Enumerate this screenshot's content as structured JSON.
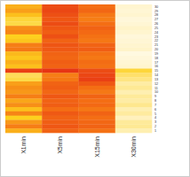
{
  "chart_data": {
    "type": "heatmap",
    "columns": [
      "X1min",
      "X5min",
      "X15min",
      "X30min"
    ],
    "rows": [
      "30",
      "29",
      "28",
      "27",
      "26",
      "25",
      "24",
      "23",
      "22",
      "21",
      "20",
      "19",
      "18",
      "17",
      "16",
      "15",
      "14",
      "13",
      "12",
      "11",
      "10",
      "9",
      "8",
      "7",
      "6",
      "5",
      "4",
      "3",
      "2",
      "1"
    ],
    "zlim": [
      0,
      1
    ],
    "cells": [
      [
        0.55,
        0.2,
        0.35,
        0.95
      ],
      [
        0.5,
        0.18,
        0.32,
        0.96
      ],
      [
        0.6,
        0.22,
        0.38,
        0.95
      ],
      [
        0.7,
        0.25,
        0.4,
        0.97
      ],
      [
        0.72,
        0.2,
        0.35,
        0.96
      ],
      [
        0.45,
        0.25,
        0.3,
        0.94
      ],
      [
        0.42,
        0.28,
        0.33,
        0.95
      ],
      [
        0.65,
        0.22,
        0.36,
        0.97
      ],
      [
        0.62,
        0.3,
        0.38,
        0.96
      ],
      [
        0.4,
        0.24,
        0.3,
        0.95
      ],
      [
        0.38,
        0.26,
        0.28,
        0.94
      ],
      [
        0.58,
        0.3,
        0.36,
        0.98
      ],
      [
        0.62,
        0.32,
        0.38,
        0.97
      ],
      [
        0.55,
        0.28,
        0.34,
        0.96
      ],
      [
        0.6,
        0.3,
        0.36,
        0.95
      ],
      [
        0.15,
        0.1,
        0.2,
        0.7
      ],
      [
        0.75,
        0.4,
        0.18,
        0.78
      ],
      [
        0.72,
        0.38,
        0.15,
        0.82
      ],
      [
        0.5,
        0.3,
        0.25,
        0.88
      ],
      [
        0.45,
        0.28,
        0.35,
        0.85
      ],
      [
        0.48,
        0.32,
        0.38,
        0.9
      ],
      [
        0.4,
        0.25,
        0.3,
        0.86
      ],
      [
        0.52,
        0.3,
        0.35,
        0.88
      ],
      [
        0.45,
        0.28,
        0.33,
        0.84
      ],
      [
        0.6,
        0.35,
        0.38,
        0.9
      ],
      [
        0.42,
        0.26,
        0.3,
        0.87
      ],
      [
        0.65,
        0.3,
        0.35,
        0.92
      ],
      [
        0.48,
        0.28,
        0.32,
        0.86
      ],
      [
        0.4,
        0.25,
        0.3,
        0.85
      ],
      [
        0.55,
        0.3,
        0.36,
        0.9
      ]
    ]
  }
}
